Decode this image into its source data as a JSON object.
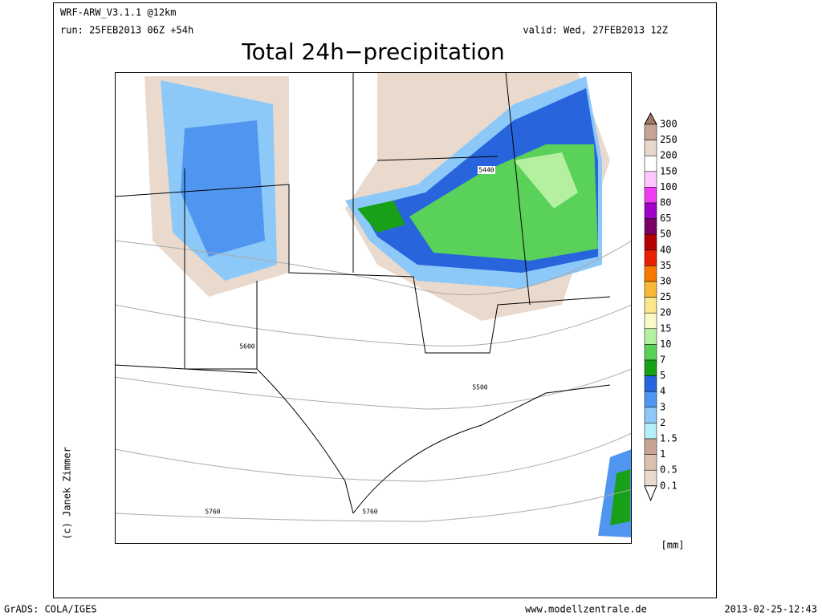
{
  "header": {
    "model": "WRF-ARW_V3.1.1 @12km",
    "run": "run: 25FEB2013 06Z +54h",
    "valid": "valid: Wed, 27FEB2013 12Z",
    "title": "Total 24h−precipitation"
  },
  "map": {
    "contour_labels": [
      "5440",
      "5600",
      "5500",
      "5760",
      "5760"
    ]
  },
  "legend": {
    "levels": [
      "300",
      "250",
      "200",
      "150",
      "100",
      "80",
      "65",
      "50",
      "40",
      "35",
      "30",
      "25",
      "20",
      "15",
      "10",
      "7",
      "5",
      "4",
      "3",
      "2",
      "1.5",
      "1",
      "0.5",
      "0.1"
    ],
    "band_colors": [
      "#c4a494",
      "#e6d8cc",
      "#ffffff",
      "#ffc6ff",
      "#f03cf0",
      "#a000c8",
      "#7a0064",
      "#b40000",
      "#e82000",
      "#f87800",
      "#f8b838",
      "#fae68c",
      "#fafac8",
      "#b4f0a0",
      "#5ad25a",
      "#18a018",
      "#2864dc",
      "#5096f0",
      "#8cc8f8",
      "#b4f0fa",
      "#c8a494",
      "#dcc0b0",
      "#eadace"
    ],
    "top_color": "#a07868",
    "bottom_color": "#ffffff",
    "unit": "[mm]"
  },
  "credit": "(c) Janek Zimmer",
  "footer": {
    "left": "GrADS: COLA/IGES",
    "center": "www.modellzentrale.de",
    "right": "2013-02-25-12:43"
  }
}
